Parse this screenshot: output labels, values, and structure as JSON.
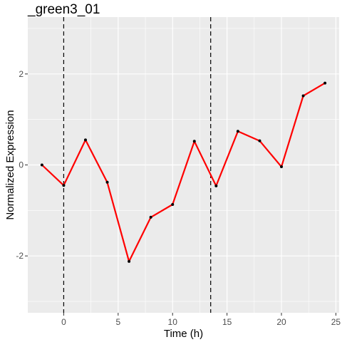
{
  "chart_data": {
    "type": "line",
    "title": "_green3_01",
    "xlabel": "Time (h)",
    "ylabel": "Normalized Expression",
    "xlim": [
      -3.3,
      25.3
    ],
    "ylim": [
      -3.25,
      3.25
    ],
    "x_ticks": [
      0,
      5,
      10,
      15,
      20,
      25
    ],
    "y_ticks": [
      -2,
      0,
      2
    ],
    "x_tick_labels": [
      "0",
      "5",
      "10",
      "15",
      "20",
      "25"
    ],
    "y_tick_labels": [
      "-2",
      "0",
      "2"
    ],
    "grid": true,
    "legend": "none",
    "vlines": [
      0,
      13.5
    ],
    "series": [
      {
        "x": [
          -2,
          0,
          2,
          4,
          6,
          8,
          10,
          12,
          14,
          16,
          18,
          20,
          22,
          24
        ],
        "y": [
          0.0,
          -0.45,
          0.55,
          -0.38,
          -2.12,
          -1.15,
          -0.87,
          0.52,
          -0.46,
          0.74,
          0.53,
          -0.04,
          1.52,
          1.8
        ],
        "color": "#ff0000",
        "marker_color": "#000000"
      }
    ]
  }
}
